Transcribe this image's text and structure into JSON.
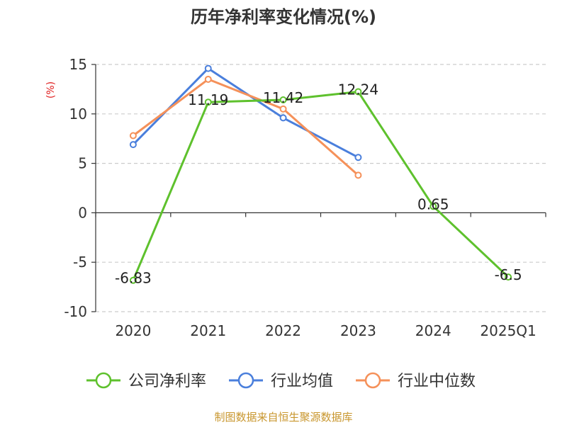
{
  "chart_data": {
    "type": "line",
    "title": "历年净利率变化情况(%)",
    "ylabel": "(%)",
    "xlabel": "",
    "categories": [
      "2020",
      "2021",
      "2022",
      "2023",
      "2024",
      "2025Q1"
    ],
    "ylim": [
      -10,
      15
    ],
    "yticks": [
      15,
      10,
      5,
      0,
      -5,
      -10
    ],
    "ytick_labels": [
      "15",
      "10",
      "5",
      "0",
      "-5",
      "-10"
    ],
    "grid": true,
    "legend_position": "bottom",
    "series": [
      {
        "name": "公司净利率",
        "color": "#5ec12d",
        "values": [
          -6.83,
          11.19,
          11.42,
          12.24,
          0.65,
          -6.5
        ],
        "labels": [
          "-6.83",
          "11.19",
          "11.42",
          "12.24",
          "0.65",
          "-6.5"
        ]
      },
      {
        "name": "行业均值",
        "color": "#4a7fdc",
        "values": [
          6.9,
          14.6,
          9.6,
          5.6,
          null,
          null
        ]
      },
      {
        "name": "行业中位数",
        "color": "#f5915a",
        "values": [
          7.8,
          13.5,
          10.5,
          3.8,
          null,
          null
        ]
      }
    ]
  },
  "source": "制图数据来自恒生聚源数据库"
}
